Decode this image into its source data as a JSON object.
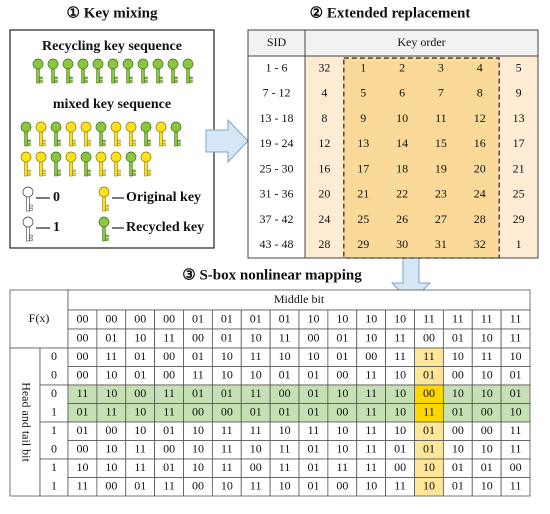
{
  "key_mixing": {
    "title": "① Key mixing",
    "recycling_label": "Recycling key sequence",
    "mixed_label": "mixed key sequence",
    "legend": [
      {
        "symbol": "0",
        "label": "Original key"
      },
      {
        "symbol": "1",
        "label": "Recycled key"
      }
    ]
  },
  "extended_replacement": {
    "title": "② Extended replacement",
    "headers": [
      "SID",
      "Key order"
    ],
    "rows": [
      {
        "sid": "1 - 6",
        "keys": [
          32,
          1,
          2,
          3,
          4,
          5
        ]
      },
      {
        "sid": "7 - 12",
        "keys": [
          4,
          5,
          6,
          7,
          8,
          9
        ]
      },
      {
        "sid": "13 - 18",
        "keys": [
          8,
          9,
          10,
          11,
          12,
          13
        ]
      },
      {
        "sid": "19 - 24",
        "keys": [
          12,
          13,
          14,
          15,
          16,
          17
        ]
      },
      {
        "sid": "25 - 30",
        "keys": [
          16,
          17,
          18,
          19,
          20,
          21
        ]
      },
      {
        "sid": "31 - 36",
        "keys": [
          20,
          21,
          22,
          23,
          24,
          25
        ]
      },
      {
        "sid": "37 - 42",
        "keys": [
          24,
          25,
          26,
          27,
          28,
          29
        ]
      },
      {
        "sid": "43 - 48",
        "keys": [
          28,
          29,
          30,
          31,
          32,
          1
        ]
      }
    ]
  },
  "sbox": {
    "title": "③ S-box nonlinear mapping",
    "corner": "F(x)",
    "column_group": "Middle bit",
    "row_group": "Head and tail bit",
    "column_headers": [
      [
        "00",
        "00",
        "00",
        "00",
        "01",
        "01",
        "01",
        "01",
        "10",
        "10",
        "10",
        "10",
        "11",
        "11",
        "11",
        "11"
      ],
      [
        "00",
        "01",
        "10",
        "11",
        "00",
        "01",
        "10",
        "11",
        "00",
        "01",
        "10",
        "11",
        "00",
        "01",
        "10",
        "11"
      ]
    ],
    "row_labels": [
      "0",
      "0",
      "0",
      "1",
      "1",
      "0",
      "1",
      "1"
    ],
    "rows": [
      [
        "00",
        "11",
        "01",
        "00",
        "01",
        "10",
        "11",
        "10",
        "10",
        "01",
        "00",
        "11",
        "11",
        "10",
        "11",
        "10"
      ],
      [
        "00",
        "10",
        "01",
        "00",
        "11",
        "10",
        "10",
        "01",
        "01",
        "00",
        "11",
        "10",
        "01",
        "00",
        "10",
        "01"
      ],
      [
        "11",
        "10",
        "00",
        "11",
        "01",
        "01",
        "11",
        "00",
        "01",
        "10",
        "11",
        "10",
        "00",
        "10",
        "10",
        "01"
      ],
      [
        "01",
        "11",
        "10",
        "11",
        "00",
        "00",
        "01",
        "01",
        "01",
        "00",
        "11",
        "10",
        "11",
        "01",
        "00",
        "10"
      ],
      [
        "01",
        "00",
        "10",
        "01",
        "10",
        "11",
        "11",
        "10",
        "11",
        "10",
        "11",
        "10",
        "01",
        "00",
        "00",
        "11"
      ],
      [
        "00",
        "10",
        "11",
        "00",
        "10",
        "11",
        "10",
        "11",
        "01",
        "10",
        "11",
        "01",
        "01",
        "10",
        "10",
        "11"
      ],
      [
        "10",
        "10",
        "11",
        "01",
        "10",
        "11",
        "00",
        "11",
        "01",
        "11",
        "11",
        "00",
        "10",
        "01",
        "01",
        "00"
      ],
      [
        "11",
        "00",
        "01",
        "11",
        "00",
        "10",
        "11",
        "10",
        "01",
        "00",
        "10",
        "11",
        "10",
        "01",
        "10",
        "11"
      ]
    ]
  }
}
